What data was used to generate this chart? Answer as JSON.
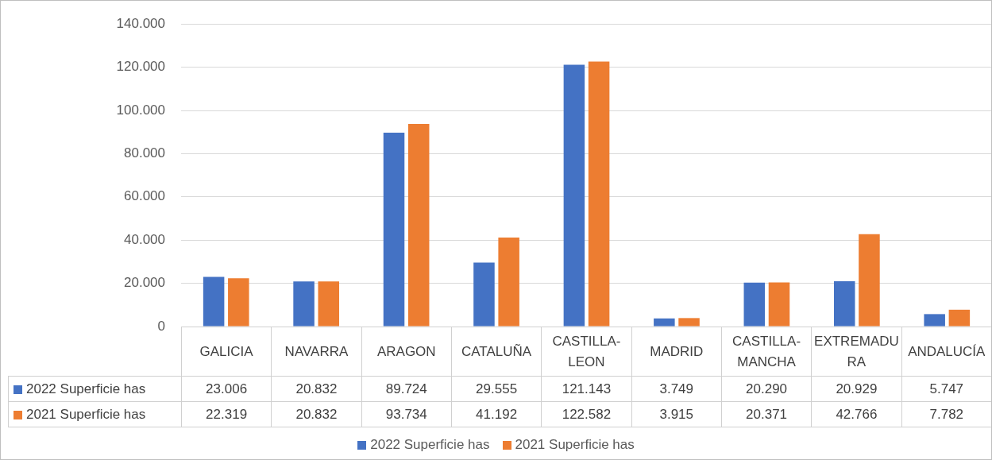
{
  "chart_data": {
    "type": "bar",
    "categories": [
      "GALICIA",
      "NAVARRA",
      "ARAGON",
      "CATALUÑA",
      "CASTILLA-LEON",
      "MADRID",
      "CASTILLA-MANCHA",
      "EXTREMADURA",
      "ANDALUCÍA"
    ],
    "series": [
      {
        "name": "2022 Superficie has",
        "color": "#4472c4",
        "values": [
          23006,
          20832,
          89724,
          29555,
          121143,
          3749,
          20290,
          20929,
          5747
        ],
        "value_labels": [
          "23.006",
          "20.832",
          "89.724",
          "29.555",
          "121.143",
          "3.749",
          "20.290",
          "20.929",
          "5.747"
        ]
      },
      {
        "name": "2021 Superficie has",
        "color": "#ed7d31",
        "values": [
          22319,
          20832,
          93734,
          41192,
          122582,
          3915,
          20371,
          42766,
          7782
        ],
        "value_labels": [
          "22.319",
          "20.832",
          "93.734",
          "41.192",
          "122.582",
          "3.915",
          "20.371",
          "42.766",
          "7.782"
        ]
      }
    ],
    "ylim": [
      0,
      140000
    ],
    "yticks": [
      0,
      {
        "value": 20000,
        "label": "20.000"
      },
      {
        "value": 40000,
        "label": "40.000"
      },
      {
        "value": 60000,
        "label": "60.000"
      },
      {
        "value": 80000,
        "label": "80.000"
      },
      {
        "value": 100000,
        "label": "100.000"
      },
      {
        "value": 120000,
        "label": "120.000"
      },
      {
        "value": 140000,
        "label": "140.000"
      }
    ],
    "grid": "y",
    "legend": "bottom"
  }
}
